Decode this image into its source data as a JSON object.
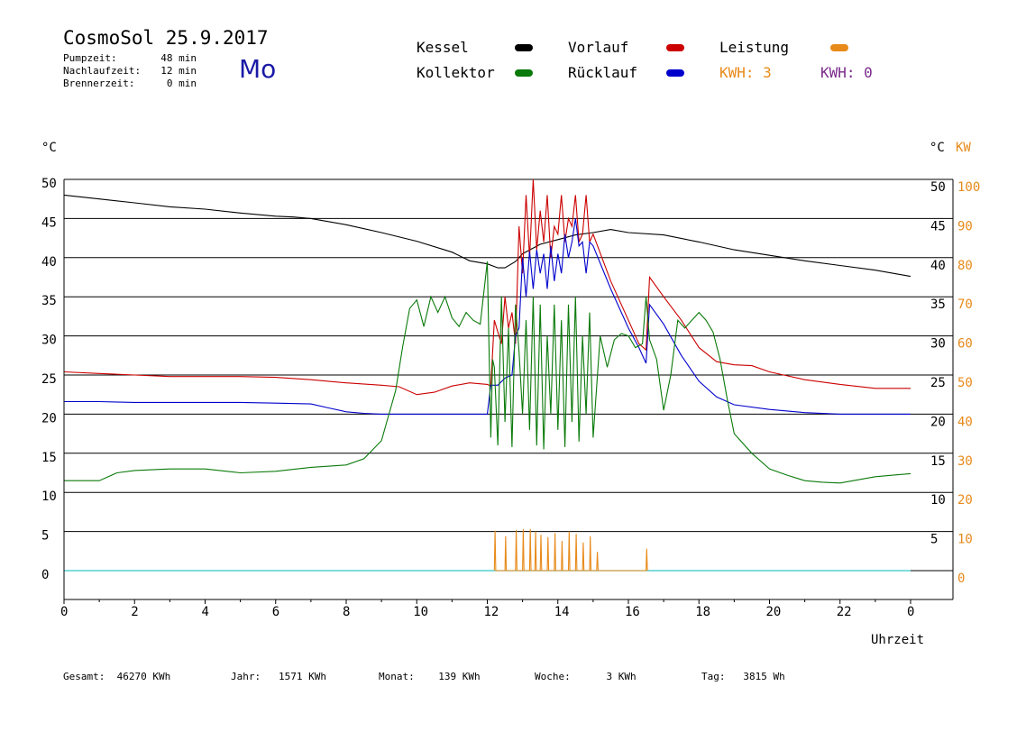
{
  "header": {
    "title": "CosmoSol 25.9.2017",
    "stats": [
      {
        "label": "Pumpzeit:",
        "value": "48 min"
      },
      {
        "label": "Nachlaufzeit:",
        "value": "12 min"
      },
      {
        "label": "Brennerzeit:",
        "value": "0 min"
      }
    ],
    "day": "Mo"
  },
  "legend": {
    "kessel": "Kessel",
    "vorlauf": "Vorlauf",
    "leistung": "Leistung",
    "kollektor": "Kollektor",
    "ruecklauf": "Rücklauf",
    "kwh1": "KWH: 3",
    "kwh2": "KWH: 0"
  },
  "colors": {
    "kessel": "#000000",
    "vorlauf": "#cc0000",
    "leistung": "#e88a1a",
    "kollektor": "#0a7a0a",
    "ruecklauf": "#0000cc",
    "kwh2": "#7a2a8a",
    "baseline": "#30c8c8"
  },
  "footer": {
    "gesamt": "Gesamt:  46270 KWh",
    "jahr": "Jahr:   1571 KWh",
    "monat": "Monat:    139 KWh",
    "woche": "Woche:      3 KWh",
    "tag": "Tag:   3815 Wh"
  },
  "chart_data": {
    "type": "line",
    "left_unit": "°C",
    "right_unit_c": "°C",
    "right_unit_kw": "KW",
    "xlabel": "Uhrzeit",
    "x_ticks": [
      "0",
      "2",
      "4",
      "6",
      "8",
      "10",
      "12",
      "14",
      "16",
      "18",
      "20",
      "22",
      "0"
    ],
    "y_ticks": [
      0,
      5,
      10,
      15,
      20,
      25,
      30,
      35,
      40,
      45,
      50
    ],
    "y2_ticks": [
      0,
      10,
      20,
      30,
      40,
      50,
      60,
      70,
      80,
      90,
      100
    ],
    "xlim": [
      0,
      24
    ],
    "ylim": [
      -3.5,
      50
    ],
    "grid": true,
    "series": [
      {
        "name": "Kessel",
        "color": "#000000",
        "x": [
          0,
          1,
          2,
          3,
          4,
          5,
          6,
          6.5,
          7,
          8,
          9,
          10,
          11,
          11.5,
          12,
          12.3,
          12.5,
          12.8,
          13,
          13.5,
          14,
          14.5,
          15,
          15.5,
          16,
          17,
          18,
          19,
          20,
          21,
          22,
          23,
          24
        ],
        "y": [
          48,
          47.5,
          47,
          46.5,
          46.2,
          45.7,
          45.3,
          45.2,
          45,
          44.2,
          43.2,
          42.1,
          40.7,
          39.6,
          39.2,
          38.7,
          38.7,
          39.5,
          40.5,
          41.7,
          42.3,
          42.9,
          43.2,
          43.6,
          43.2,
          42.9,
          42,
          41,
          40.3,
          39.6,
          39,
          38.4,
          37.6
        ]
      },
      {
        "name": "Vorlauf",
        "color": "#cc0000",
        "x": [
          0,
          1,
          2,
          3,
          4,
          5,
          6,
          7,
          8,
          9,
          9.5,
          10,
          10.5,
          11,
          11.5,
          12,
          12.1,
          12.2,
          12.3,
          12.4,
          12.5,
          12.6,
          12.7,
          12.8,
          12.9,
          13,
          13.1,
          13.2,
          13.3,
          13.4,
          13.5,
          13.6,
          13.7,
          13.8,
          13.9,
          14,
          14.1,
          14.2,
          14.3,
          14.4,
          14.5,
          14.6,
          14.7,
          14.8,
          14.9,
          15,
          15.5,
          16,
          16.3,
          16.5,
          16.6,
          17,
          17.5,
          18,
          18.5,
          19,
          19.5,
          20,
          21,
          22,
          23,
          24
        ],
        "y": [
          25.4,
          25.2,
          25,
          24.8,
          24.8,
          24.8,
          24.7,
          24.4,
          24,
          23.7,
          23.5,
          22.5,
          22.8,
          23.6,
          24,
          23.8,
          23.6,
          32,
          30.5,
          29,
          35,
          31,
          33,
          29,
          44,
          38,
          48,
          40,
          50,
          41,
          46,
          42,
          48,
          40,
          44,
          43,
          48,
          42,
          45,
          44,
          48,
          42,
          43,
          48,
          42,
          43,
          37,
          32,
          29,
          28.2,
          37.5,
          35,
          32,
          28.5,
          26.7,
          26.3,
          26.2,
          25.4,
          24.4,
          23.8,
          23.3,
          23.3
        ]
      },
      {
        "name": "Rücklauf",
        "color": "#0000cc",
        "x": [
          0,
          1,
          2,
          3,
          4,
          5,
          6,
          7,
          7.5,
          8,
          8.5,
          9,
          10,
          11,
          11.5,
          12,
          12.1,
          12.2,
          12.3,
          12.5,
          12.7,
          12.8,
          12.9,
          13,
          13.1,
          13.2,
          13.3,
          13.4,
          13.5,
          13.6,
          13.7,
          13.8,
          13.9,
          14,
          14.1,
          14.2,
          14.3,
          14.4,
          14.5,
          14.6,
          14.7,
          14.8,
          14.9,
          15,
          15.5,
          16,
          16.3,
          16.5,
          16.6,
          17,
          17.5,
          18,
          18.5,
          19,
          20,
          21,
          22,
          23,
          24
        ],
        "y": [
          21.6,
          21.6,
          21.5,
          21.5,
          21.5,
          21.5,
          21.4,
          21.3,
          20.8,
          20.3,
          20.1,
          20,
          20,
          20,
          20,
          20,
          23.7,
          23.7,
          23.7,
          24.6,
          25,
          30,
          31,
          40,
          35,
          40.8,
          36,
          41,
          38,
          40.5,
          36,
          41.5,
          37,
          40.5,
          38,
          43,
          40,
          42,
          45,
          41.5,
          42,
          38,
          42,
          41.5,
          36,
          31,
          28.5,
          26.5,
          34,
          31.5,
          27.5,
          24.2,
          22.2,
          21.2,
          20.6,
          20.2,
          20,
          20,
          20
        ]
      },
      {
        "name": "Kollektor",
        "color": "#0a7a0a",
        "x": [
          0,
          0.5,
          1,
          1.5,
          2,
          3,
          4,
          5,
          6,
          7,
          8,
          8.5,
          9,
          9.4,
          9.6,
          9.8,
          10,
          10.2,
          10.4,
          10.6,
          10.8,
          11,
          11.2,
          11.4,
          11.6,
          11.8,
          12,
          12.1,
          12.15,
          12.2,
          12.3,
          12.4,
          12.5,
          12.6,
          12.7,
          12.8,
          12.9,
          13,
          13.1,
          13.2,
          13.3,
          13.4,
          13.5,
          13.6,
          13.7,
          13.8,
          13.9,
          14,
          14.1,
          14.2,
          14.3,
          14.4,
          14.5,
          14.6,
          14.7,
          14.8,
          14.9,
          15,
          15.2,
          15.4,
          15.6,
          15.8,
          16,
          16.2,
          16.4,
          16.5,
          16.6,
          16.8,
          17,
          17.2,
          17.4,
          17.6,
          17.8,
          18,
          18.2,
          18.4,
          18.6,
          18.8,
          19,
          19.5,
          20,
          20.5,
          21,
          21.5,
          22,
          22.5,
          23,
          23.5,
          24
        ],
        "y": [
          11.5,
          11.5,
          11.5,
          12.5,
          12.8,
          13,
          13,
          12.5,
          12.7,
          13.2,
          13.5,
          14.3,
          16.6,
          23,
          28.6,
          33.5,
          34.6,
          31.2,
          35,
          33,
          35,
          32.3,
          31.2,
          33,
          32,
          31.5,
          39.5,
          17,
          27,
          26,
          16,
          35,
          19,
          31,
          15.8,
          34,
          28,
          20,
          32,
          18,
          35,
          16,
          34,
          15.5,
          30,
          20,
          34,
          18,
          32,
          15.8,
          34,
          19,
          35,
          16.5,
          30,
          20,
          33,
          17,
          30,
          26,
          29.5,
          30.3,
          30,
          28.5,
          29,
          35,
          29.5,
          27,
          20.5,
          25,
          32,
          31,
          32,
          33,
          32,
          30.5,
          27,
          22,
          17.5,
          15,
          13,
          12.2,
          11.5,
          11.3,
          11.2,
          11.6,
          12,
          12.2,
          12.4
        ]
      },
      {
        "name": "Leistung",
        "color": "#e88a1a",
        "x": [
          12.2,
          12.22,
          12.24,
          12.5,
          12.52,
          12.54,
          12.8,
          12.82,
          12.84,
          13.0,
          13.02,
          13.04,
          13.2,
          13.22,
          13.24,
          13.35,
          13.37,
          13.39,
          13.5,
          13.52,
          13.54,
          13.7,
          13.72,
          13.74,
          13.9,
          13.92,
          13.94,
          14.1,
          14.12,
          14.14,
          14.3,
          14.32,
          14.34,
          14.5,
          14.52,
          14.54,
          14.7,
          14.72,
          14.74,
          14.9,
          14.92,
          14.94,
          15.1,
          15.12,
          15.14,
          16.5,
          16.52,
          16.54
        ],
        "y": [
          0,
          5.1,
          0,
          0,
          4.4,
          0,
          0,
          5.2,
          0,
          0,
          5.3,
          0,
          0,
          5.3,
          0,
          0,
          5.0,
          0,
          0,
          4.6,
          0,
          0,
          4.3,
          0,
          0,
          4.8,
          0,
          0,
          3.8,
          0,
          0,
          5.0,
          0,
          0,
          4.7,
          0,
          0,
          3.6,
          0,
          0,
          4.4,
          0,
          0,
          2.4,
          0,
          0,
          2.8,
          0
        ]
      }
    ]
  }
}
